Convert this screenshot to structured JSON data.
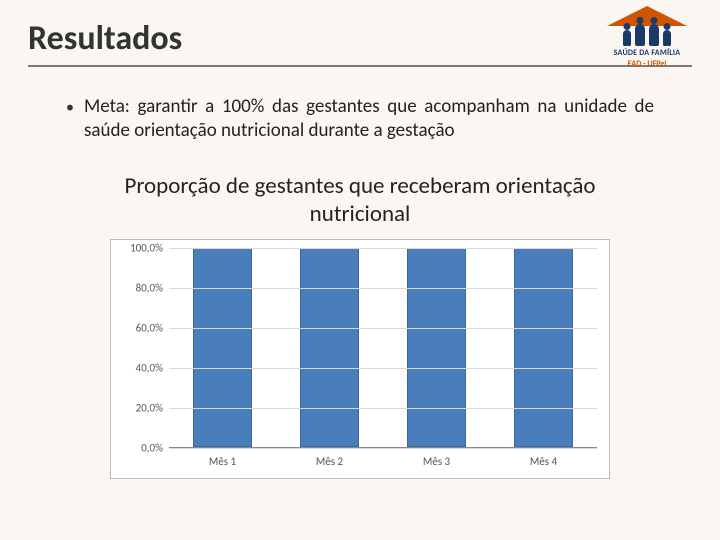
{
  "title": "Resultados",
  "logo": {
    "line1": "SAÚDE DA FAMÍLIA",
    "line2": "EAD - UFPel"
  },
  "bullet": "Meta: garantir a 100% das gestantes que acompanham na unidade de saúde orientação nutricional durante a gestação",
  "subtitle": "Proporção de gestantes que receberam orientação nutricional",
  "chart": {
    "type": "bar",
    "categories": [
      "Mês 1",
      "Mês 2",
      "Mês 3",
      "Mês 4"
    ],
    "values": [
      100.0,
      100.0,
      100.0,
      100.0
    ],
    "bar_color": "#4a7ebb",
    "bar_border": "#3a6aa0",
    "background_color": "#ffffff",
    "grid_color": "#d9d9d9",
    "axis_color": "#888888",
    "ylim": [
      0,
      100
    ],
    "ytick_step": 20,
    "yticks": [
      "0,0%",
      "20,0%",
      "40,0%",
      "60,0%",
      "80,0%",
      "100,0%"
    ],
    "label_fontsize": 11,
    "label_color": "#555555",
    "bar_width": 0.56
  },
  "page_background": "#faf7f2"
}
